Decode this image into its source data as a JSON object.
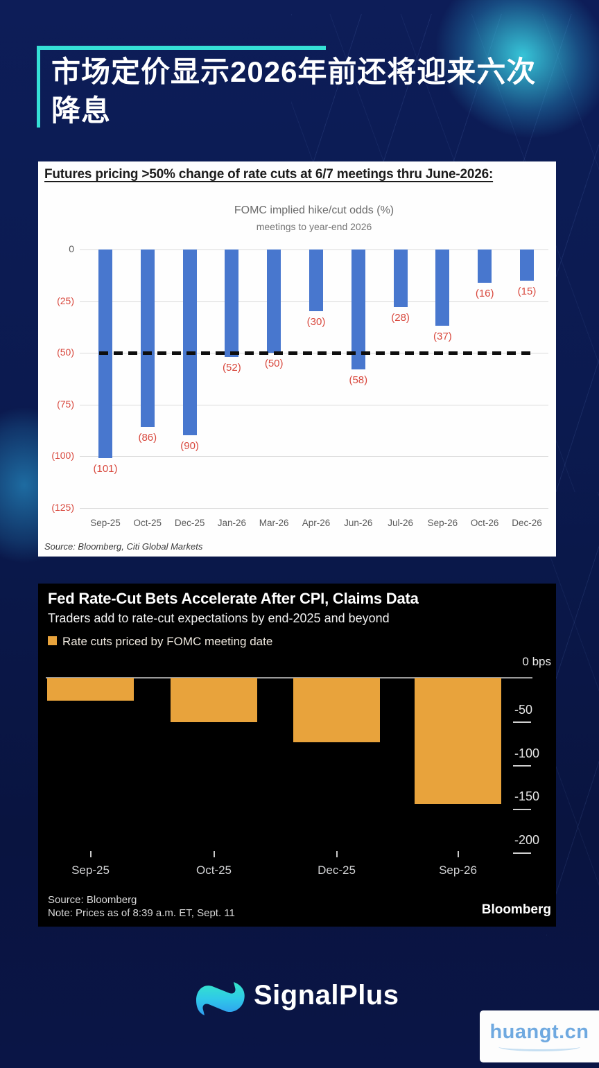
{
  "header": {
    "title_line1": "市场定价显示2026年前还将迎来六次",
    "title_line2": "降息"
  },
  "footer": {
    "brand": "SignalPlus",
    "watermark": "huangt.cn"
  },
  "chart_data": [
    {
      "type": "bar",
      "heading": "Futures pricing >50% change of rate cuts at 6/7 meetings thru June-2026:",
      "title": "FOMC implied hike/cut odds (%)",
      "subtitle": "meetings to year-end 2026",
      "categories": [
        "Sep-25",
        "Oct-25",
        "Dec-25",
        "Jan-26",
        "Mar-26",
        "Apr-26",
        "Jun-26",
        "Jul-26",
        "Sep-26",
        "Oct-26",
        "Dec-26"
      ],
      "values": [
        -101,
        -86,
        -90,
        -52,
        -50,
        -30,
        -58,
        -28,
        -37,
        -16,
        -15
      ],
      "data_labels": [
        "(101)",
        "(86)",
        "(90)",
        "(52)",
        "(50)",
        "(30)",
        "(58)",
        "(28)",
        "(37)",
        "(16)",
        "(15)"
      ],
      "ylim": [
        -125,
        0
      ],
      "yticks": [
        "0",
        "(25)",
        "(50)",
        "(75)",
        "(100)",
        "(125)"
      ],
      "reference_line": -50,
      "grid": true,
      "bar_color": "#4877ce",
      "label_color": "#d8473c",
      "source": "Source: Bloomberg, Citi Global Markets"
    },
    {
      "type": "bar",
      "title": "Fed Rate-Cut Bets Accelerate After CPI, Claims Data",
      "subtitle": "Traders add to rate-cut expectations by end-2025 and beyond",
      "legend": [
        "Rate cuts priced by FOMC meeting date"
      ],
      "categories": [
        "Sep-25",
        "Oct-25",
        "Dec-25",
        "Sep-26"
      ],
      "values": [
        -26,
        -50,
        -73,
        -143
      ],
      "unit": "bps",
      "ylim": [
        -200,
        0
      ],
      "yticks": [
        "0 bps",
        "-50",
        "-100",
        "-150",
        "-200"
      ],
      "axis_side": "right",
      "grid": false,
      "bar_color": "#e8a33c",
      "source": "Source: Bloomberg",
      "note": "Note: Prices as of 8:39 a.m. ET, Sept. 11",
      "brand": "Bloomberg"
    }
  ]
}
